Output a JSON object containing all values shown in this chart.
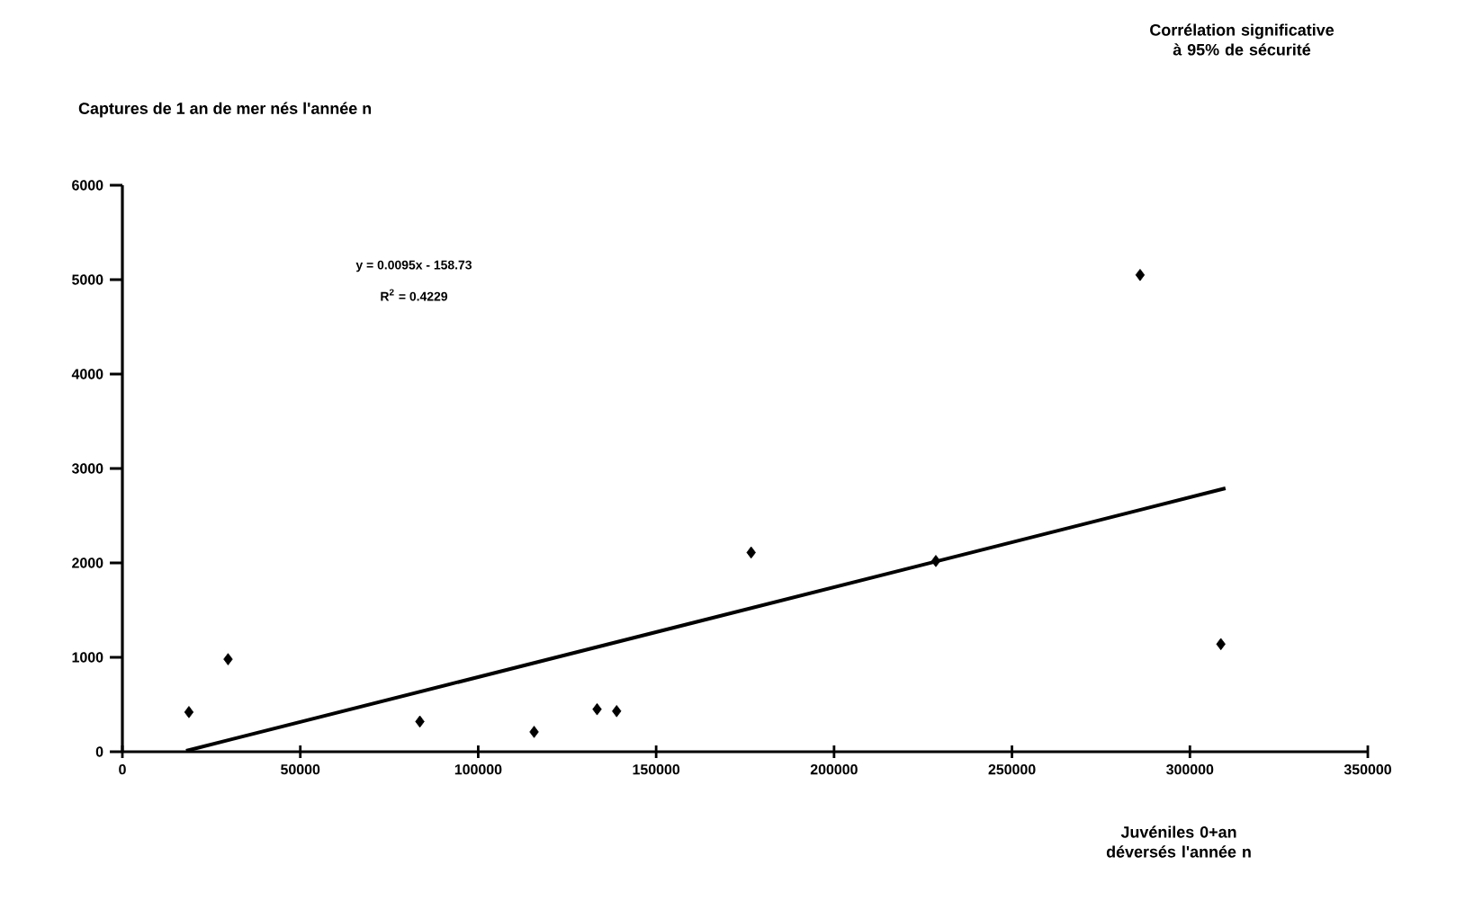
{
  "chart_data": {
    "type": "scatter",
    "title": "Captures de 1 an de mer nés l'année n",
    "xlabel": "Juvéniles 0+an déversés l'année n",
    "annotations": [
      "Corrélation significative à 95% de sécurité",
      "y = 0.0095x - 158.73",
      "R$^{2}$ = 0.4229"
    ],
    "xlim": [
      0,
      350000
    ],
    "ylim": [
      0,
      6000
    ],
    "xticks": [
      0,
      50000,
      100000,
      150000,
      200000,
      250000,
      300000,
      350000
    ],
    "yticks": [
      0,
      1000,
      2000,
      3000,
      4000,
      5000,
      6000
    ],
    "grid": false,
    "marker": "diamond",
    "series": [
      {
        "color": "#000000",
        "x": [
          18700,
          29700,
          83600,
          115700,
          133400,
          138900,
          176700,
          228600,
          286000,
          308700
        ],
        "values": [
          420,
          980,
          320,
          210,
          450,
          430,
          2110,
          2020,
          5050,
          1140
        ]
      },
      {
        "type": "line",
        "color": "#000000",
        "x": [
          17900,
          310000
        ],
        "values": [
          10,
          2790
        ],
        "line_style": "solid",
        "marker": "none"
      }
    ]
  }
}
